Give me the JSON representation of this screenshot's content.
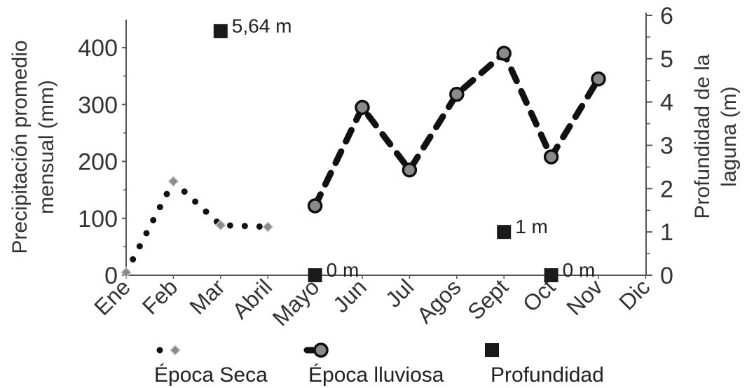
{
  "chart_data": {
    "type": "line",
    "categories": [
      "Ene",
      "Feb",
      "Mar",
      "Abril",
      "Mayo",
      "Jun",
      "Jul",
      "Agos",
      "Sept",
      "Oct",
      "Nov",
      "Dic"
    ],
    "ylabel": "Precipitación promedio mensual (mm)",
    "ylabel_lines": [
      "Precipitación promedio",
      "mensual (mm)"
    ],
    "ylim": [
      0,
      450
    ],
    "yticks": [
      0,
      100,
      200,
      300,
      400
    ],
    "y2label": "Profundidad de la laguna (m)",
    "y2label_lines": [
      "Profundidad de la",
      "laguna (m)"
    ],
    "y2lim": [
      0,
      6
    ],
    "y2ticks": [
      0,
      1,
      2,
      3,
      4,
      5,
      6
    ],
    "grid": false,
    "legend_position": "bottom",
    "series": [
      {
        "name": "Época Seca",
        "axis": "left",
        "style": "dotted",
        "marker": "diamond",
        "color": "#111111",
        "marker_color": "#8a8a8a",
        "values": [
          5,
          165,
          88,
          85,
          null,
          null,
          null,
          null,
          null,
          null,
          null,
          null
        ]
      },
      {
        "name": "Época lluviosa",
        "axis": "left",
        "style": "dashed",
        "marker": "circle",
        "color": "#111111",
        "marker_color": "#8a8a8a",
        "values": [
          null,
          null,
          null,
          null,
          122,
          295,
          185,
          318,
          390,
          208,
          345,
          null
        ]
      },
      {
        "name": "Profundidad",
        "axis": "right",
        "style": "markers",
        "marker": "square",
        "color": "#1a1a1a",
        "points": [
          {
            "category": "Mar",
            "value": 5.64,
            "label": "5,64 m"
          },
          {
            "category": "Mayo",
            "value": 0,
            "label": "0 m"
          },
          {
            "category": "Sept",
            "value": 1,
            "label": "1 m"
          },
          {
            "category": "Oct",
            "value": 0,
            "label": "0 m"
          }
        ]
      }
    ]
  }
}
